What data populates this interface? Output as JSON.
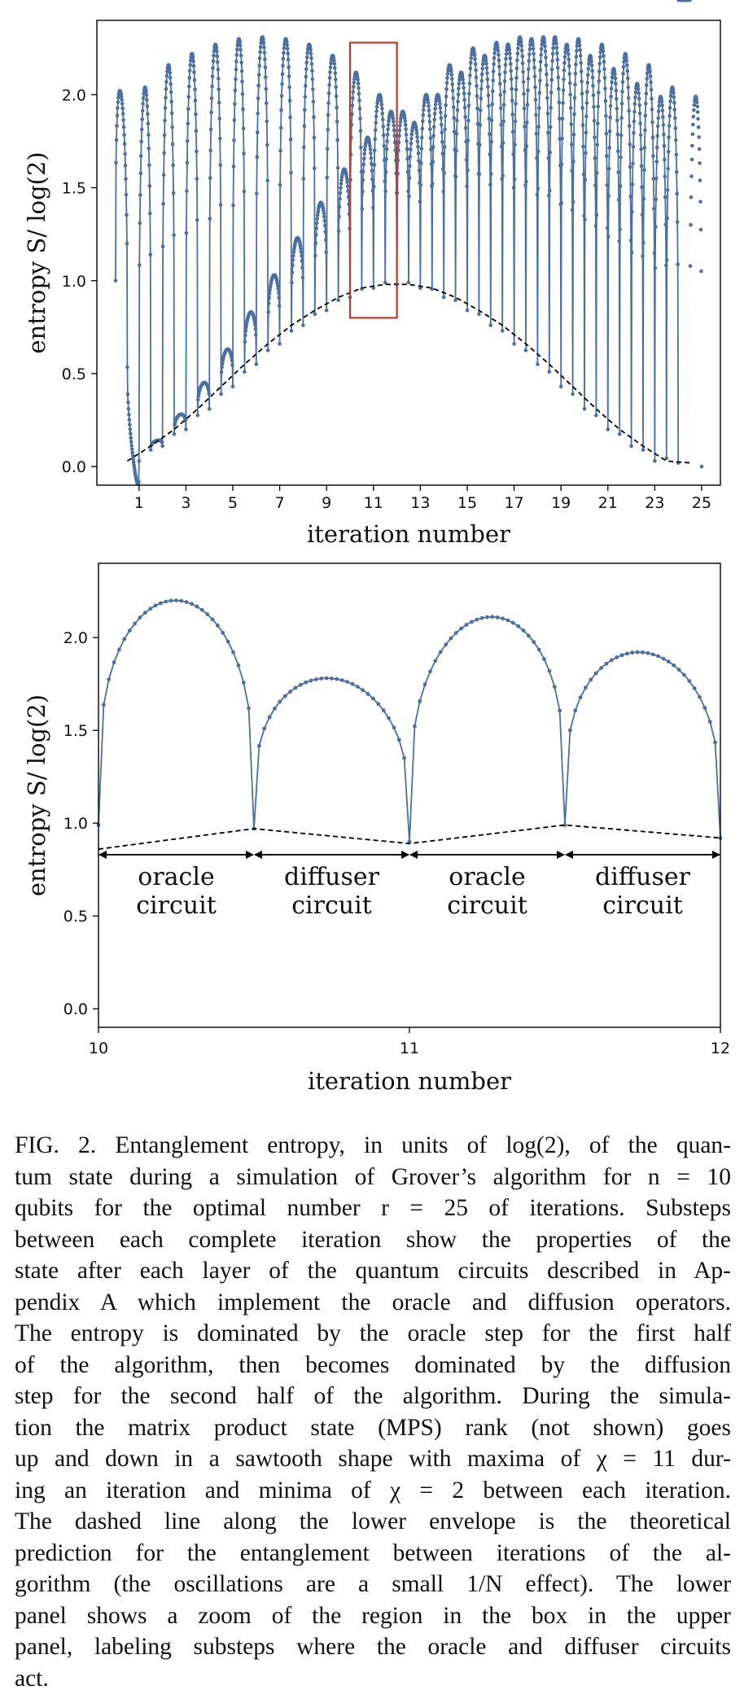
{
  "chart_data": [
    {
      "type": "line",
      "panel": "upper",
      "xlabel": "iteration number",
      "ylabel": "entropy S/ log(2)",
      "xticks": [
        "1",
        "3",
        "5",
        "7",
        "9",
        "11",
        "13",
        "15",
        "17",
        "19",
        "21",
        "23",
        "25"
      ],
      "yticks": [
        "0.0",
        "0.5",
        "1.0",
        "1.5",
        "2.0"
      ],
      "xlim": [
        -0.8,
        25.8
      ],
      "ylim": [
        -0.1,
        2.4
      ],
      "grid": false,
      "series": [
        {
          "style": "solid line with dot markers",
          "color": "#4a6fa5",
          "oracle_peaks": [
            1.99,
            2.04,
            2.16,
            2.22,
            2.27,
            2.3,
            2.31,
            2.3,
            2.27,
            2.21,
            2.12,
            2.0,
            1.85
          ],
          "diffuser_peaks": [
            0.04,
            0.14,
            0.28,
            0.45,
            0.63,
            0.83,
            1.03,
            1.23,
            1.42,
            1.6,
            1.77,
            1.91,
            2.0,
            2.16,
            2.25,
            2.28,
            2.31,
            2.31,
            2.27,
            2.21,
            2.14,
            2.06,
            1.99
          ],
          "iteration_minima": [
            1.0,
            0.03,
            0.11,
            0.2,
            0.31,
            0.43,
            0.55,
            0.66,
            0.76,
            0.84,
            0.91,
            0.96,
            0.98,
            0.96,
            0.91,
            0.84,
            0.76,
            0.66,
            0.55,
            0.43,
            0.31,
            0.2,
            0.11,
            0.03,
            0.02,
            0.0
          ]
        },
        {
          "style": "dashed line",
          "color": "#000000",
          "description_values": [
            0.03,
            0.11,
            0.2,
            0.31,
            0.43,
            0.55,
            0.66,
            0.76,
            0.84,
            0.91,
            0.96,
            0.98,
            0.98,
            0.96,
            0.91,
            0.84,
            0.76,
            0.66,
            0.55,
            0.43,
            0.31,
            0.2,
            0.11,
            0.03,
            0.02
          ]
        }
      ],
      "box": {
        "x": [
          10,
          12
        ],
        "y": [
          0.8,
          2.28
        ],
        "color": "#c0392b"
      }
    },
    {
      "type": "line",
      "panel": "lower",
      "xlabel": "iteration number",
      "ylabel": "entropy S/ log(2)",
      "xticks": [
        "10",
        "11",
        "12"
      ],
      "yticks": [
        "0.0",
        "0.5",
        "1.0",
        "1.5",
        "2.0"
      ],
      "xlim": [
        10,
        12
      ],
      "ylim": [
        -0.1,
        2.4
      ],
      "grid": false,
      "segments": [
        {
          "x0": 10.0,
          "x1": 10.5,
          "start": 0.99,
          "peak": 2.2,
          "end": 0.97
        },
        {
          "x0": 10.5,
          "x1": 11.0,
          "start": 0.97,
          "peak": 1.78,
          "end": 0.9
        },
        {
          "x0": 11.0,
          "x1": 11.5,
          "start": 0.9,
          "peak": 2.11,
          "end": 0.99
        },
        {
          "x0": 11.5,
          "x1": 12.0,
          "start": 0.99,
          "peak": 1.92,
          "end": 0.92
        }
      ],
      "dashed": [
        [
          10.0,
          0.86
        ],
        [
          10.5,
          0.97
        ],
        [
          11.0,
          0.89
        ],
        [
          11.5,
          0.99
        ],
        [
          12.0,
          0.92
        ]
      ],
      "annotations": [
        {
          "line1": "oracle",
          "line2": "circuit",
          "x": [
            10.0,
            10.5
          ],
          "y": 0.83
        },
        {
          "line1": "diffuser",
          "line2": "circuit",
          "x": [
            10.5,
            11.0
          ],
          "y": 0.83
        },
        {
          "line1": "oracle",
          "line2": "circuit",
          "x": [
            11.0,
            11.5
          ],
          "y": 0.83
        },
        {
          "line1": "diffuser",
          "line2": "circuit",
          "x": [
            11.5,
            12.0
          ],
          "y": 0.83
        }
      ]
    }
  ],
  "caption": {
    "lines": [
      "FIG. 2. Entanglement entropy, in units of log(2), of the quan-",
      "tum state during a simulation of Grover’s algorithm for n = 10",
      "qubits for the optimal number r = 25 of iterations. Substeps",
      "between each complete iteration show the properties of the",
      "state after each layer of the quantum circuits described in Ap-",
      "pendix A which implement the oracle and diffusion operators.",
      "The entropy is dominated by the oracle step for the first half",
      "of the algorithm, then becomes dominated by the diffusion",
      "step for the second half of the algorithm. During the simula-",
      "tion the matrix product state (MPS) rank (not shown) goes",
      "up and down in a sawtooth shape with maxima of χ = 11 dur-",
      "ing an iteration and minima of χ = 2 between each iteration.",
      "The dashed line along the lower envelope is the theoretical",
      "prediction for the entanglement between iterations of the al-",
      "gorithm (the oscillations are a small 1/N effect). The lower",
      "panel shows a zoom of the region in the box in the upper",
      "panel, labeling substeps where the oracle and diffuser circuits",
      "act."
    ]
  }
}
